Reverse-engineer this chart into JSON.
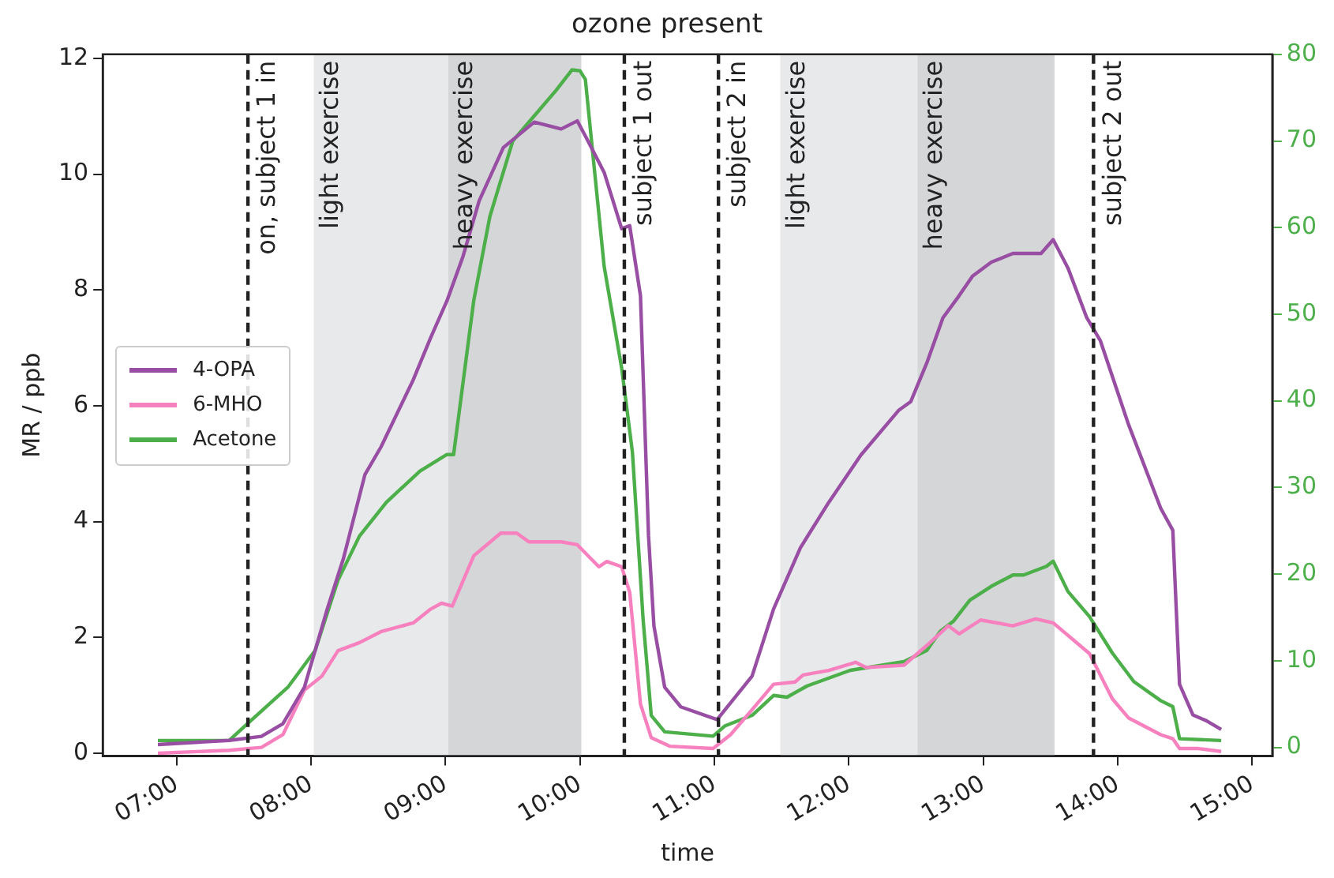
{
  "chart_data": {
    "type": "line",
    "title": "ozone present",
    "xlabel": "time",
    "ylabel": "MR / ppb",
    "xlim": [
      6.45,
      15.15
    ],
    "xticks": [
      {
        "value": 7,
        "label": "07:00"
      },
      {
        "value": 8,
        "label": "08:00"
      },
      {
        "value": 9,
        "label": "09:00"
      },
      {
        "value": 10,
        "label": "10:00"
      },
      {
        "value": 11,
        "label": "11:00"
      },
      {
        "value": 12,
        "label": "12:00"
      },
      {
        "value": 13,
        "label": "13:00"
      },
      {
        "value": 14,
        "label": "14:00"
      },
      {
        "value": 15,
        "label": "15:00"
      }
    ],
    "ylim": [
      -0.05,
      12.07
    ],
    "yticks": [
      0,
      2,
      4,
      6,
      8,
      10,
      12
    ],
    "y2lim": [
      -1,
      80
    ],
    "y2ticks": [
      0,
      10,
      20,
      30,
      40,
      50,
      60,
      70,
      80
    ],
    "grid": false,
    "legend": "left",
    "marker": "none",
    "line_style": "solid",
    "series": [
      {
        "name": "4-OPA",
        "color": "#984ea3",
        "x": [
          6.86,
          7.39,
          7.63,
          7.79,
          7.95,
          8.12,
          8.24,
          8.4,
          8.52,
          8.76,
          8.89,
          9.01,
          9.13,
          9.25,
          9.43,
          9.66,
          9.86,
          9.98,
          10.04,
          10.18,
          10.31,
          10.37,
          10.45,
          10.51,
          10.55,
          10.63,
          10.75,
          11.02,
          11.28,
          11.44,
          11.64,
          11.85,
          12.09,
          12.37,
          12.46,
          12.58,
          12.7,
          12.82,
          12.92,
          13.06,
          13.22,
          13.43,
          13.52,
          13.63,
          13.77,
          13.87,
          14.08,
          14.32,
          14.41,
          14.46,
          14.56,
          14.66,
          14.77
        ],
        "values": [
          0.15,
          0.22,
          0.29,
          0.51,
          1.14,
          2.49,
          3.36,
          4.81,
          5.29,
          6.45,
          7.18,
          7.81,
          8.58,
          9.54,
          10.46,
          10.9,
          10.78,
          10.92,
          10.66,
          10.03,
          9.06,
          9.11,
          7.9,
          3.75,
          2.2,
          1.14,
          0.8,
          0.58,
          1.33,
          2.49,
          3.55,
          4.33,
          5.15,
          5.92,
          6.07,
          6.74,
          7.52,
          7.9,
          8.24,
          8.48,
          8.63,
          8.63,
          8.87,
          8.38,
          7.52,
          7.13,
          5.68,
          4.23,
          3.85,
          1.19,
          0.66,
          0.56,
          0.41
        ]
      },
      {
        "name": "6-MHO",
        "color": "#f781bf",
        "x": [
          6.86,
          7.39,
          7.63,
          7.79,
          7.95,
          8.08,
          8.2,
          8.36,
          8.52,
          8.76,
          8.89,
          8.97,
          9.05,
          9.21,
          9.41,
          9.53,
          9.62,
          9.86,
          9.98,
          10.14,
          10.2,
          10.31,
          10.37,
          10.45,
          10.53,
          10.67,
          10.99,
          11.12,
          11.28,
          11.44,
          11.6,
          11.66,
          11.85,
          12.05,
          12.13,
          12.41,
          12.58,
          12.74,
          12.82,
          12.98,
          13.22,
          13.39,
          13.52,
          13.79,
          13.96,
          14.08,
          14.32,
          14.41,
          14.46,
          14.6,
          14.77
        ],
        "values": [
          0.0,
          0.05,
          0.1,
          0.32,
          1.09,
          1.33,
          1.77,
          1.91,
          2.1,
          2.25,
          2.49,
          2.59,
          2.54,
          3.41,
          3.8,
          3.8,
          3.65,
          3.65,
          3.6,
          3.22,
          3.31,
          3.22,
          2.78,
          0.85,
          0.27,
          0.12,
          0.08,
          0.32,
          0.75,
          1.19,
          1.23,
          1.35,
          1.43,
          1.57,
          1.48,
          1.52,
          1.86,
          2.2,
          2.06,
          2.3,
          2.2,
          2.32,
          2.25,
          1.72,
          0.94,
          0.61,
          0.32,
          0.25,
          0.08,
          0.08,
          0.03
        ]
      },
      {
        "name": "Acetone",
        "color": "#4daf4a",
        "axis": "y2",
        "x": [
          6.86,
          7.39,
          7.51,
          7.83,
          8.03,
          8.2,
          8.36,
          8.56,
          8.81,
          9.01,
          9.06,
          9.21,
          9.33,
          9.5,
          9.66,
          9.82,
          9.94,
          10.0,
          10.04,
          10.18,
          10.31,
          10.39,
          10.47,
          10.53,
          10.63,
          10.99,
          11.08,
          11.28,
          11.44,
          11.54,
          11.69,
          12.01,
          12.41,
          12.58,
          12.68,
          12.78,
          12.9,
          13.06,
          13.22,
          13.3,
          13.47,
          13.52,
          13.63,
          13.79,
          13.96,
          14.12,
          14.32,
          14.41,
          14.46,
          14.77
        ],
        "values": [
          0.8,
          0.8,
          2.5,
          7.0,
          11.2,
          19.3,
          24.4,
          28.3,
          31.9,
          33.8,
          33.8,
          51.6,
          61.3,
          70.0,
          72.9,
          75.8,
          78.2,
          78.1,
          77.1,
          55.5,
          43.8,
          34.1,
          14.7,
          3.7,
          1.8,
          1.3,
          2.5,
          3.7,
          6.0,
          5.8,
          7.1,
          8.9,
          9.9,
          11.2,
          13.4,
          14.6,
          17.0,
          18.6,
          19.9,
          19.9,
          20.9,
          21.5,
          18.0,
          15.1,
          10.9,
          7.6,
          5.4,
          4.7,
          1.0,
          0.8
        ]
      }
    ],
    "ref_lines": [
      {
        "axis": "x",
        "value": 7.53,
        "label": "on, subject 1 in",
        "color": "#222222",
        "line_style": "dashed"
      },
      {
        "axis": "x",
        "value": 10.33,
        "label": "subject 1 out",
        "color": "#222222",
        "line_style": "dashed"
      },
      {
        "axis": "x",
        "value": 11.03,
        "label": "subject 2 in",
        "color": "#222222",
        "line_style": "dashed"
      },
      {
        "axis": "x",
        "value": 13.82,
        "label": "subject 2 out",
        "color": "#222222",
        "line_style": "dashed"
      }
    ],
    "bands": [
      {
        "axis": "x",
        "from": 8.02,
        "to": 9.02,
        "label": "light exercise",
        "color": "#e8e9eb"
      },
      {
        "axis": "x",
        "from": 9.02,
        "to": 10.01,
        "label": "heavy exercise",
        "color": "#d5d6d8"
      },
      {
        "axis": "x",
        "from": 11.49,
        "to": 12.51,
        "label": "light exercise",
        "color": "#e8e9eb"
      },
      {
        "axis": "x",
        "from": 12.51,
        "to": 13.53,
        "label": "heavy exercise",
        "color": "#d5d6d8"
      }
    ]
  }
}
